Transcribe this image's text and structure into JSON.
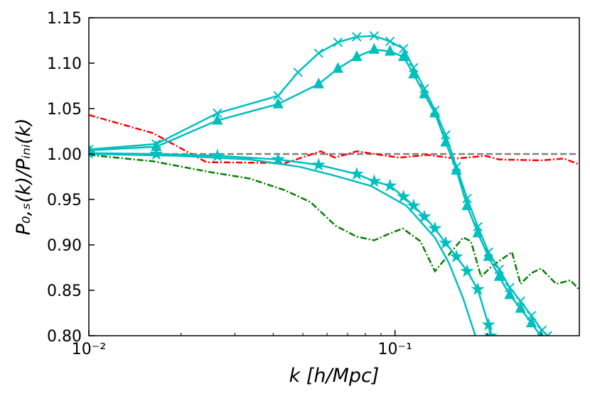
{
  "chart_data": {
    "type": "line",
    "xlabel": "k [h/Mpc]",
    "ylabel": "P₀,ₛ(k)/Pᵢₙᵢ(k)",
    "xscale": "log",
    "xlim": [
      0.01,
      0.4
    ],
    "ylim": [
      0.8,
      1.15
    ],
    "xticks": [
      {
        "value": 0.01,
        "label": "10⁻²"
      },
      {
        "value": 0.1,
        "label": "10⁻¹"
      }
    ],
    "xminorticks": [
      0.02,
      0.03,
      0.04,
      0.05,
      0.06,
      0.07,
      0.08,
      0.09,
      0.2,
      0.3
    ],
    "yticks": [
      {
        "value": 0.8,
        "label": "0.80"
      },
      0.85,
      {
        "value": 0.9,
        "label": "0.90"
      },
      0.95,
      {
        "value": 1.0,
        "label": "1.00"
      },
      1.05,
      {
        "value": 1.1,
        "label": "1.10"
      },
      1.15
    ],
    "series": [
      {
        "color": "#808080",
        "linestyle": "dashed",
        "marker": "none",
        "x": [
          0.01,
          0.4
        ],
        "values": [
          1.0,
          1.0
        ]
      },
      {
        "color": "#ff0000",
        "linestyle": "dashdot",
        "marker": "none",
        "x": [
          0.01,
          0.0162,
          0.0242,
          0.0438,
          0.0572,
          0.0637,
          0.075,
          0.103,
          0.128,
          0.158,
          0.197,
          0.219,
          0.3,
          0.356,
          0.404
        ],
        "values": [
          1.043,
          1.023,
          0.991,
          0.99,
          1.003,
          0.996,
          1.003,
          0.996,
          0.999,
          0.995,
          0.998,
          0.994,
          0.993,
          0.995,
          0.988
        ]
      },
      {
        "color": "#008000",
        "linestyle": "dashdot",
        "marker": "none",
        "x": [
          0.01,
          0.0162,
          0.025,
          0.0335,
          0.0438,
          0.053,
          0.064,
          0.075,
          0.0855,
          0.0953,
          0.106,
          0.121,
          0.135,
          0.167,
          0.177,
          0.191,
          0.208,
          0.241,
          0.257,
          0.279,
          0.3,
          0.336,
          0.374,
          0.404
        ],
        "values": [
          0.999,
          0.992,
          0.98,
          0.973,
          0.96,
          0.947,
          0.921,
          0.909,
          0.905,
          0.912,
          0.918,
          0.904,
          0.871,
          0.908,
          0.904,
          0.865,
          0.877,
          0.892,
          0.857,
          0.869,
          0.874,
          0.857,
          0.861,
          0.849
        ]
      },
      {
        "color": "#00bfbf",
        "linestyle": "solid",
        "marker": "x",
        "x": [
          0.01,
          0.0166,
          0.0263,
          0.0415,
          0.0482,
          0.0563,
          0.0651,
          0.075,
          0.0855,
          0.0963,
          0.1066,
          0.115,
          0.1247,
          0.135,
          0.1464,
          0.1587,
          0.172,
          0.1864,
          0.202,
          0.219,
          0.237,
          0.257,
          0.279,
          0.302,
          0.315
        ],
        "values": [
          1.005,
          1.011,
          1.045,
          1.064,
          1.09,
          1.111,
          1.123,
          1.129,
          1.13,
          1.124,
          1.116,
          1.095,
          1.072,
          1.048,
          1.021,
          0.986,
          0.951,
          0.92,
          0.892,
          0.873,
          0.853,
          0.838,
          0.822,
          0.806,
          0.8
        ]
      },
      {
        "color": "#00bfbf",
        "linestyle": "solid",
        "marker": "triangle",
        "x": [
          0.01,
          0.0166,
          0.0263,
          0.0415,
          0.0563,
          0.0651,
          0.075,
          0.0855,
          0.0963,
          0.1066,
          0.115,
          0.1247,
          0.135,
          0.1464,
          0.1587,
          0.172,
          0.1864,
          0.202,
          0.219,
          0.237,
          0.257,
          0.279,
          0.299
        ],
        "values": [
          1.004,
          1.008,
          1.037,
          1.055,
          1.077,
          1.094,
          1.107,
          1.115,
          1.113,
          1.107,
          1.088,
          1.066,
          1.045,
          1.013,
          0.982,
          0.943,
          0.913,
          0.887,
          0.865,
          0.845,
          0.83,
          0.814,
          0.8
        ]
      },
      {
        "color": "#00bfbf",
        "linestyle": "solid",
        "marker": "star",
        "x": [
          0.01,
          0.0166,
          0.0263,
          0.0415,
          0.0563,
          0.075,
          0.0855,
          0.0963,
          0.1066,
          0.115,
          0.1247,
          0.135,
          0.1464,
          0.1587,
          0.172,
          0.1864,
          0.202,
          0.205
        ],
        "values": [
          1.001,
          1.0,
          0.998,
          0.994,
          0.988,
          0.978,
          0.97,
          0.965,
          0.953,
          0.943,
          0.931,
          0.918,
          0.902,
          0.887,
          0.871,
          0.851,
          0.812,
          0.8
        ]
      },
      {
        "color": "#00bfbf",
        "linestyle": "solid",
        "marker": "none",
        "x": [
          0.01,
          0.0196,
          0.0335,
          0.0487,
          0.0637,
          0.0833,
          0.109,
          0.135,
          0.15,
          0.167,
          0.183
        ],
        "values": [
          1.0,
          0.998,
          0.994,
          0.986,
          0.976,
          0.965,
          0.943,
          0.908,
          0.88,
          0.841,
          0.8
        ]
      }
    ]
  }
}
